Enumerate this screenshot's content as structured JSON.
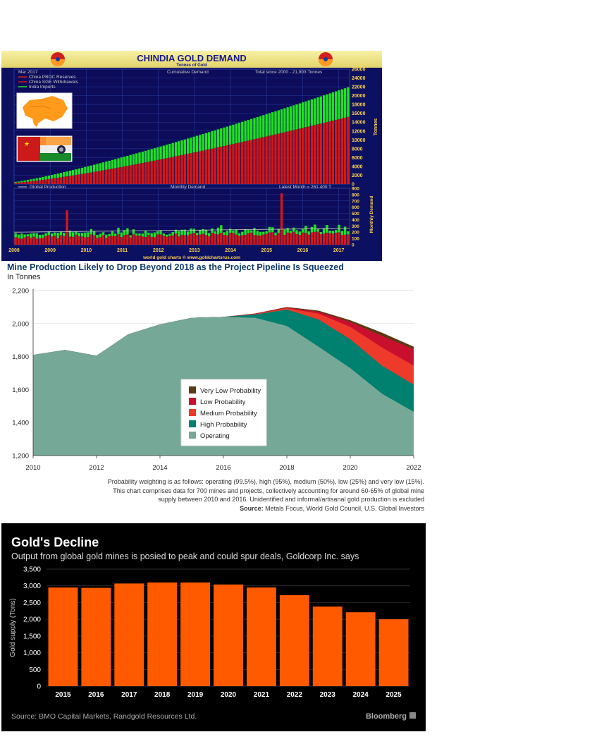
{
  "chart_data": [
    {
      "type": "bar",
      "title": "CHINDIA GOLD DEMAND",
      "subtitle": "Tonnes of Gold",
      "panels": {
        "upper": {
          "date_label": "Mar 2017",
          "mode_label": "Cumulative Demand",
          "total_label": "Total since 2000 - 21,903 Tonnes",
          "ylabel": "Tonnes",
          "ylim": [
            0,
            26000
          ],
          "yticks": [
            "0",
            "2000",
            "4000",
            "6000",
            "8000",
            "10000",
            "12000",
            "14000",
            "16000",
            "18000",
            "20000",
            "22000",
            "24000",
            "26000"
          ],
          "legend": [
            {
              "label": "China PBOC Reserves",
              "color": "#d01818"
            },
            {
              "label": "China SGE Withdrawals",
              "color": "#d01818"
            },
            {
              "label": "India Imports",
              "color": "#20e020"
            }
          ],
          "series": [
            {
              "name": "China",
              "start": 300,
              "end": 15200
            },
            {
              "name": "India",
              "start": 200,
              "end": 6700
            }
          ]
        },
        "lower": {
          "legend_label": "Global Production",
          "mode_label": "Monthly Demand",
          "latest_label": "Latest Month = 261.400 T",
          "ylabel": "Monthly Demand",
          "ylim": [
            0,
            900
          ],
          "yticks": [
            "0",
            "100",
            "200",
            "300",
            "400",
            "500",
            "600",
            "700",
            "800",
            "900"
          ],
          "spikes": [
            {
              "x": 2009.5,
              "value": 550
            },
            {
              "x": 2015.45,
              "value": 820
            }
          ]
        },
        "xticks": [
          "2008",
          "2009",
          "2010",
          "2011",
          "2012",
          "2013",
          "2014",
          "2015",
          "2016",
          "2017"
        ],
        "credit": "world gold charts © www.goldchartsrus.com"
      }
    },
    {
      "type": "area",
      "title": "Mine Production Likely to Drop Beyond 2018 as the Project Pipeline Is Squeezed",
      "subtitle": "In Tonnes",
      "ylim": [
        1200,
        2200
      ],
      "yticks": [
        "1,200",
        "1,400",
        "1,600",
        "1,800",
        "2,000",
        "2,200"
      ],
      "xlim": [
        2010,
        2022
      ],
      "xticks": [
        "2010",
        "2012",
        "2014",
        "2016",
        "2018",
        "2020",
        "2022"
      ],
      "x": [
        2010,
        2011,
        2012,
        2013,
        2014,
        2015,
        2016,
        2017,
        2018,
        2019,
        2020,
        2021,
        2022
      ],
      "series": [
        {
          "name": "Operating",
          "color": "#76a897",
          "values": [
            1810,
            1840,
            1805,
            1935,
            1995,
            2035,
            2040,
            2035,
            1985,
            1860,
            1730,
            1575,
            1465
          ]
        },
        {
          "name": "High Probability",
          "color": "#00806e",
          "values": [
            1810,
            1840,
            1805,
            1935,
            1995,
            2035,
            2040,
            2055,
            2085,
            2025,
            1905,
            1745,
            1630
          ]
        },
        {
          "name": "Medium Probability",
          "color": "#ee3a2a",
          "values": [
            1810,
            1840,
            1805,
            1935,
            1995,
            2035,
            2040,
            2058,
            2093,
            2060,
            1980,
            1855,
            1745
          ]
        },
        {
          "name": "Low Probability",
          "color": "#c8102e",
          "values": [
            1810,
            1840,
            1805,
            1935,
            1995,
            2035,
            2040,
            2060,
            2097,
            2072,
            2010,
            1925,
            1845
          ]
        },
        {
          "name": "Very Low Probability",
          "color": "#5a3a10",
          "values": [
            1810,
            1840,
            1805,
            1935,
            1995,
            2035,
            2040,
            2061,
            2100,
            2078,
            2020,
            1945,
            1860
          ]
        }
      ],
      "legend_order": [
        "Very Low Probability",
        "Low Probability",
        "Medium Probability",
        "High Probability",
        "Operating"
      ],
      "notes": [
        "Probability weighting is as follows: operating (99.5%), high (95%), medium (50%), low (25%) and very low (15%).",
        "This chart comprises data for 700 mines and projects, collectively accounting for around 60-65% of global mine",
        "supply between 2010 and 2016. Unidentified and informal/artisanal gold production is excluded"
      ],
      "source_label": "Source:",
      "source_text": " Metals Focus, World Gold Council, U.S. Global Investors"
    },
    {
      "type": "bar",
      "title": "Gold's Decline",
      "subtitle": "Output from global gold mines is posied to peak and could spur deals, Goldcorp Inc. says",
      "ylabel": "Gold supply (Tons)",
      "ylim": [
        0,
        3500
      ],
      "yticks": [
        "0",
        "500",
        "1,000",
        "1,500",
        "2,000",
        "2,500",
        "3,000",
        "3,500"
      ],
      "categories": [
        "2015",
        "2016",
        "2017",
        "2018",
        "2019",
        "2020",
        "2021",
        "2022",
        "2023",
        "2024",
        "2025"
      ],
      "values": [
        2950,
        2940,
        3070,
        3100,
        3100,
        3040,
        2950,
        2720,
        2380,
        2210,
        2000
      ],
      "bar_color": "#ff5a00",
      "source": "Source: BMO Capital Markets, Randgold Resources Ltd.",
      "brand": "Bloomberg"
    }
  ]
}
